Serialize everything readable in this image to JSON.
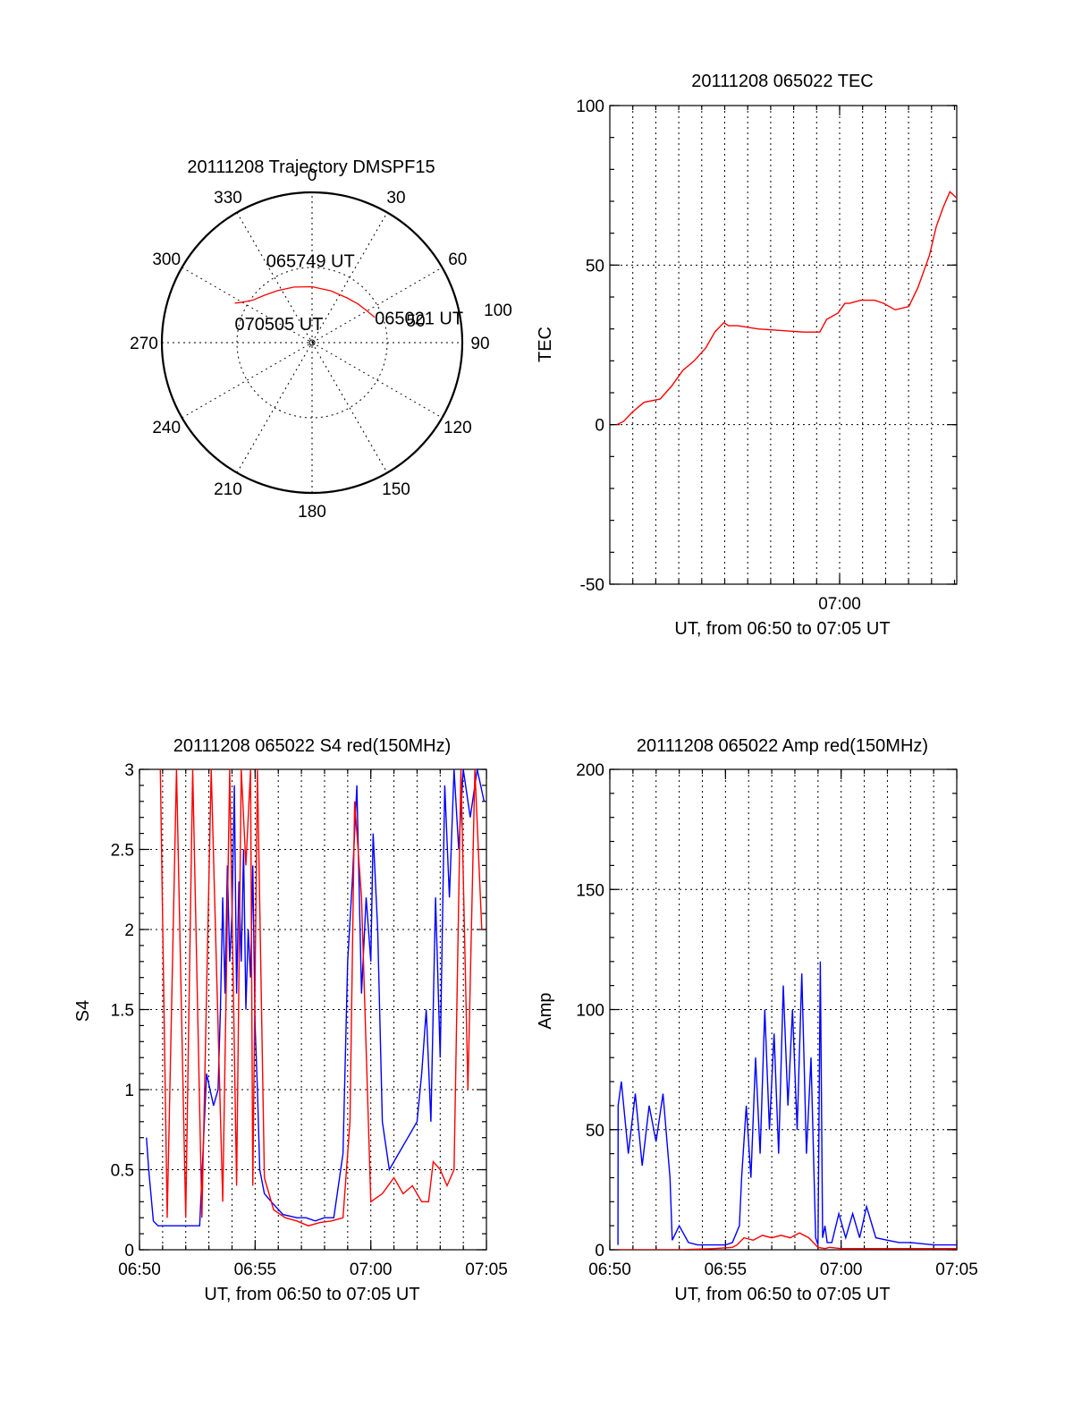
{
  "chart_data": [
    {
      "type": "polar",
      "title": "20111208 Trajectory DMSPF15",
      "angle_labels": [
        "0",
        "30",
        "60",
        "90",
        "120",
        "150",
        "180",
        "210",
        "240",
        "270",
        "300",
        "330"
      ],
      "radius_labels": [
        "50",
        "100"
      ],
      "trajectory": {
        "color": "#ff0000",
        "points": [
          {
            "az": 68,
            "el": 9
          },
          {
            "az": 60,
            "el": 14
          },
          {
            "az": 50,
            "el": 18
          },
          {
            "az": 38,
            "el": 22
          },
          {
            "az": 20,
            "el": 24
          },
          {
            "az": 0,
            "el": 23
          },
          {
            "az": -18,
            "el": 20
          },
          {
            "az": -34,
            "el": 15
          },
          {
            "az": -46,
            "el": 9
          },
          {
            "az": -54,
            "el": 3
          },
          {
            "az": -58,
            "el": -3
          },
          {
            "az": -61,
            "el": -9
          },
          {
            "az": -63,
            "el": -14
          }
        ]
      },
      "annotations": [
        {
          "text": "065021 UT",
          "az": 68,
          "el": 9
        },
        {
          "text": "065749 UT",
          "az": -3,
          "el": 23
        },
        {
          "text": "070505 UT",
          "az": -63,
          "el": -14
        }
      ]
    },
    {
      "type": "line",
      "title": "20111208 065022 TEC",
      "xlabel": "UT, from 06:50 to 07:05 UT",
      "ylabel": "TEC",
      "xlim": [
        0,
        15.2
      ],
      "x_tick_labels": [
        {
          "x": 10,
          "label": "07:00"
        }
      ],
      "ylim": [
        -50,
        100
      ],
      "yticks": [
        -50,
        0,
        50,
        100
      ],
      "series": [
        {
          "color": "#ff0000",
          "x": [
            0.3,
            0.6,
            1.0,
            1.5,
            2.2,
            2.7,
            3.2,
            3.7,
            4.2,
            4.6,
            5.0,
            5.2,
            5.6,
            6.5,
            7.5,
            8.5,
            9.2,
            9.5,
            10.0,
            10.3,
            10.5,
            11.0,
            11.6,
            12.0,
            12.5,
            13.1,
            13.5,
            14.0,
            14.3,
            14.6,
            14.9,
            15.2
          ],
          "y": [
            0,
            1,
            4,
            7,
            8,
            12,
            17,
            20,
            24,
            29,
            32,
            31,
            31,
            30,
            29.5,
            29,
            29,
            33,
            35,
            38,
            38,
            39,
            39,
            38,
            36,
            37,
            43,
            53,
            62,
            68,
            73,
            71
          ]
        }
      ]
    },
    {
      "type": "line",
      "title": "20111208 065022 S4 red(150MHz)",
      "xlabel": "UT, from 06:50 to 07:05 UT",
      "ylabel": "S4",
      "xlim": [
        0,
        15
      ],
      "x_tick_labels": [
        {
          "x": 0,
          "label": "06:50"
        },
        {
          "x": 5,
          "label": "06:55"
        },
        {
          "x": 10,
          "label": "07:00"
        },
        {
          "x": 15,
          "label": "07:05"
        }
      ],
      "ylim": [
        0,
        3
      ],
      "yticks": [
        0,
        0.5,
        1,
        1.5,
        2,
        2.5,
        3
      ],
      "ytick_labels": [
        "0",
        "0.5",
        "1",
        "1.5",
        "2",
        "2.5",
        "3"
      ],
      "series": [
        {
          "color": "#0000ff",
          "x": [
            0.3,
            0.4,
            0.6,
            0.8,
            1.0,
            2.4,
            2.6,
            2.9,
            3.2,
            3.4,
            3.5,
            3.6,
            3.7,
            3.8,
            3.9,
            4.0,
            4.1,
            4.2,
            4.3,
            4.4,
            4.5,
            4.6,
            4.7,
            4.8,
            4.9,
            5.0,
            5.1,
            5.2,
            5.4,
            5.7,
            6.2,
            6.8,
            7.2,
            7.6,
            8.0,
            8.4,
            8.8,
            9.0,
            9.2,
            9.4,
            9.6,
            9.8,
            10.0,
            10.1,
            10.3,
            10.5,
            10.8,
            11.2,
            11.6,
            12.0,
            12.2,
            12.4,
            12.6,
            12.8,
            13.0,
            13.2,
            13.4,
            13.6,
            13.8,
            14.0,
            14.3,
            14.6,
            14.9
          ],
          "y": [
            0.7,
            0.5,
            0.18,
            0.15,
            0.15,
            0.15,
            0.15,
            1.1,
            0.9,
            1.0,
            1.5,
            2.2,
            1.6,
            2.4,
            1.8,
            2.1,
            2.9,
            1.6,
            2.3,
            1.8,
            2.5,
            1.5,
            2.0,
            1.7,
            2.4,
            1.4,
            1.0,
            0.5,
            0.35,
            0.3,
            0.22,
            0.2,
            0.2,
            0.18,
            0.2,
            0.2,
            0.6,
            1.8,
            2.3,
            2.9,
            1.6,
            2.2,
            1.8,
            2.6,
            2.0,
            0.8,
            0.5,
            0.6,
            0.7,
            0.8,
            1.1,
            1.5,
            0.8,
            2.2,
            1.2,
            2.9,
            2.2,
            3.0,
            2.5,
            3.0,
            2.7,
            3.0,
            2.8
          ]
        },
        {
          "color": "#ff0000",
          "x": [
            0.9,
            1.2,
            1.6,
            2.0,
            2.3,
            2.7,
            3.1,
            3.6,
            3.9,
            4.2,
            4.4,
            4.6,
            4.8,
            4.9,
            5.1,
            5.4,
            5.8,
            6.3,
            6.8,
            7.3,
            7.8,
            8.3,
            8.8,
            9.1,
            9.3,
            9.6,
            10.0,
            10.5,
            11.0,
            11.4,
            11.8,
            12.2,
            12.5,
            12.7,
            13.0,
            13.3,
            13.6,
            13.9,
            14.2,
            14.5,
            14.8
          ],
          "y": [
            3,
            0.2,
            3,
            0.2,
            3,
            0.2,
            3,
            0.3,
            3,
            0.4,
            3,
            2.4,
            3,
            0.4,
            3,
            0.45,
            0.25,
            0.2,
            0.18,
            0.15,
            0.17,
            0.18,
            0.2,
            0.8,
            2.8,
            2.2,
            0.3,
            0.35,
            0.45,
            0.35,
            0.4,
            0.3,
            0.3,
            0.55,
            0.5,
            0.4,
            0.5,
            3.0,
            1.0,
            3.0,
            2.0
          ]
        }
      ]
    },
    {
      "type": "line",
      "title": "20111208 065022 Amp red(150MHz)",
      "xlabel": "UT, from 06:50 to 07:05 UT",
      "ylabel": "Amp",
      "xlim": [
        0,
        15
      ],
      "x_tick_labels": [
        {
          "x": 0,
          "label": "06:50"
        },
        {
          "x": 5,
          "label": "06:55"
        },
        {
          "x": 10,
          "label": "07:00"
        },
        {
          "x": 15,
          "label": "07:05"
        }
      ],
      "ylim": [
        0,
        200
      ],
      "yticks": [
        0,
        50,
        100,
        150,
        200
      ],
      "series": [
        {
          "color": "#0000ff",
          "x": [
            0.35,
            0.36,
            0.5,
            0.8,
            1.1,
            1.4,
            1.7,
            2.0,
            2.3,
            2.6,
            2.7,
            3.0,
            3.4,
            3.8,
            4.5,
            5.0,
            5.3,
            5.6,
            5.7,
            5.9,
            6.1,
            6.3,
            6.5,
            6.7,
            6.9,
            7.1,
            7.3,
            7.5,
            7.7,
            7.9,
            8.1,
            8.3,
            8.5,
            8.7,
            8.9,
            9.0,
            9.1,
            9.2,
            9.3,
            9.4,
            9.6,
            9.9,
            10.2,
            10.5,
            10.8,
            11.1,
            11.5,
            12.0,
            12.5,
            13.0,
            14.0,
            15.0
          ],
          "y": [
            2,
            60,
            70,
            40,
            65,
            35,
            60,
            45,
            65,
            30,
            4,
            10,
            3,
            2,
            2,
            2,
            3,
            10,
            30,
            60,
            30,
            80,
            40,
            100,
            50,
            90,
            40,
            110,
            60,
            100,
            50,
            115,
            40,
            80,
            5,
            2,
            120,
            5,
            10,
            3,
            3,
            15,
            5,
            15,
            5,
            18,
            5,
            4,
            3,
            3,
            2,
            2
          ]
        },
        {
          "color": "#ff0000",
          "x": [
            0.3,
            1.5,
            3.0,
            4.5,
            5.3,
            5.5,
            5.8,
            6.2,
            6.6,
            7.0,
            7.4,
            7.8,
            8.2,
            8.6,
            8.8,
            9.0,
            9.3,
            9.5,
            10.0,
            11.0,
            13.0,
            15.0
          ],
          "y": [
            0,
            0,
            0,
            0.5,
            1,
            2,
            5,
            4,
            6,
            5,
            6,
            5,
            7,
            5,
            3,
            1,
            0.5,
            1,
            0.5,
            0.5,
            0.5,
            0.5
          ]
        }
      ]
    }
  ]
}
